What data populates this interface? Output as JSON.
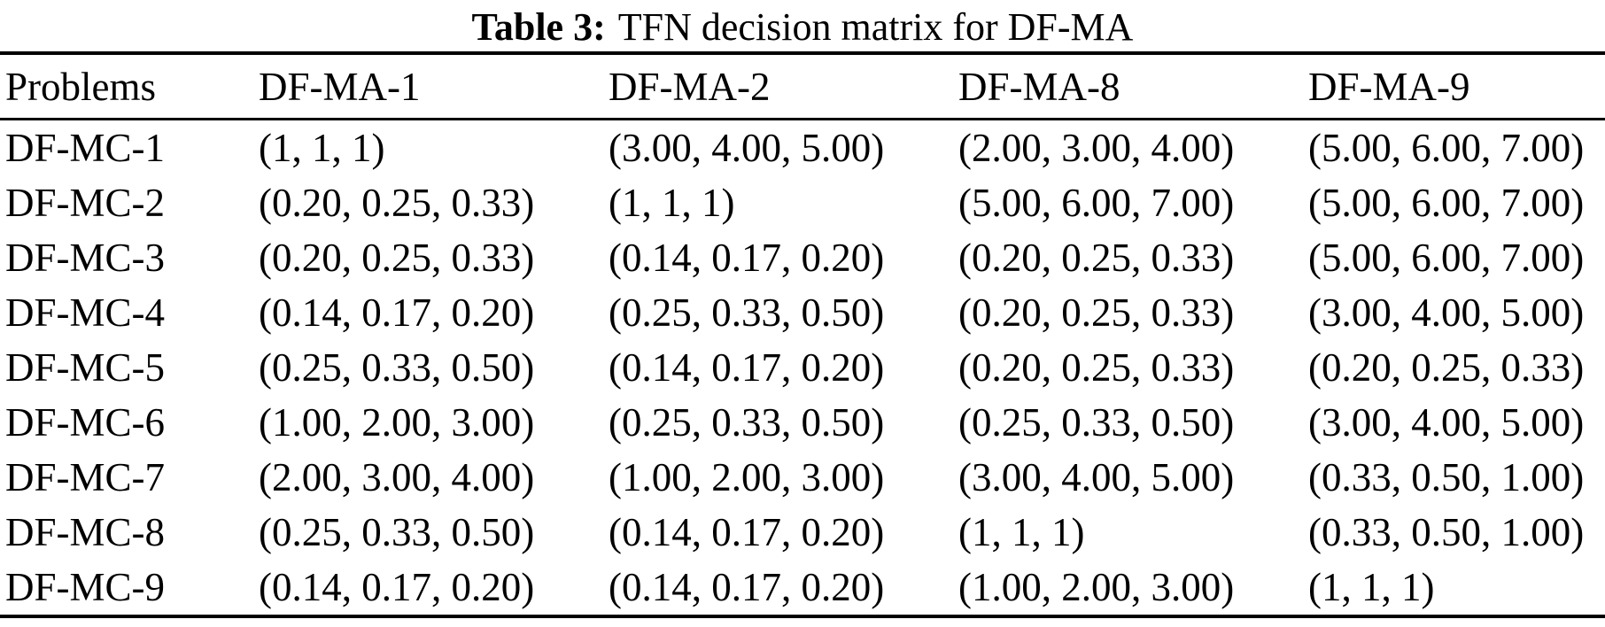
{
  "table": {
    "caption_label": "Table 3:",
    "caption_text": "TFN decision matrix for DF-MA",
    "columns": [
      "Problems",
      "DF-MA-1",
      "DF-MA-2",
      "DF-MA-8",
      "DF-MA-9"
    ],
    "rows": [
      {
        "label": "DF-MC-1",
        "values": [
          "(1, 1, 1)",
          "(3.00, 4.00, 5.00)",
          "(2.00, 3.00, 4.00)",
          "(5.00, 6.00, 7.00)"
        ]
      },
      {
        "label": "DF-MC-2",
        "values": [
          "(0.20, 0.25, 0.33)",
          "(1, 1, 1)",
          "(5.00, 6.00, 7.00)",
          "(5.00, 6.00, 7.00)"
        ]
      },
      {
        "label": "DF-MC-3",
        "values": [
          "(0.20, 0.25, 0.33)",
          "(0.14, 0.17, 0.20)",
          "(0.20, 0.25, 0.33)",
          "(5.00, 6.00, 7.00)"
        ]
      },
      {
        "label": "DF-MC-4",
        "values": [
          "(0.14, 0.17, 0.20)",
          "(0.25, 0.33, 0.50)",
          "(0.20, 0.25, 0.33)",
          "(3.00, 4.00, 5.00)"
        ]
      },
      {
        "label": "DF-MC-5",
        "values": [
          "(0.25, 0.33, 0.50)",
          "(0.14, 0.17, 0.20)",
          "(0.20, 0.25, 0.33)",
          "(0.20, 0.25, 0.33)"
        ]
      },
      {
        "label": "DF-MC-6",
        "values": [
          "(1.00, 2.00, 3.00)",
          "(0.25, 0.33, 0.50)",
          "(0.25, 0.33, 0.50)",
          "(3.00, 4.00, 5.00)"
        ]
      },
      {
        "label": "DF-MC-7",
        "values": [
          "(2.00, 3.00, 4.00)",
          "(1.00, 2.00, 3.00)",
          "(3.00, 4.00, 5.00)",
          "(0.33, 0.50, 1.00)"
        ]
      },
      {
        "label": "DF-MC-8",
        "values": [
          "(0.25, 0.33, 0.50)",
          "(0.14, 0.17, 0.20)",
          "(1, 1, 1)",
          "(0.33, 0.50, 1.00)"
        ]
      },
      {
        "label": "DF-MC-9",
        "values": [
          "(0.14, 0.17, 0.20)",
          "(0.14, 0.17, 0.20)",
          "(1.00, 2.00, 3.00)",
          "(1, 1, 1)"
        ]
      }
    ]
  }
}
